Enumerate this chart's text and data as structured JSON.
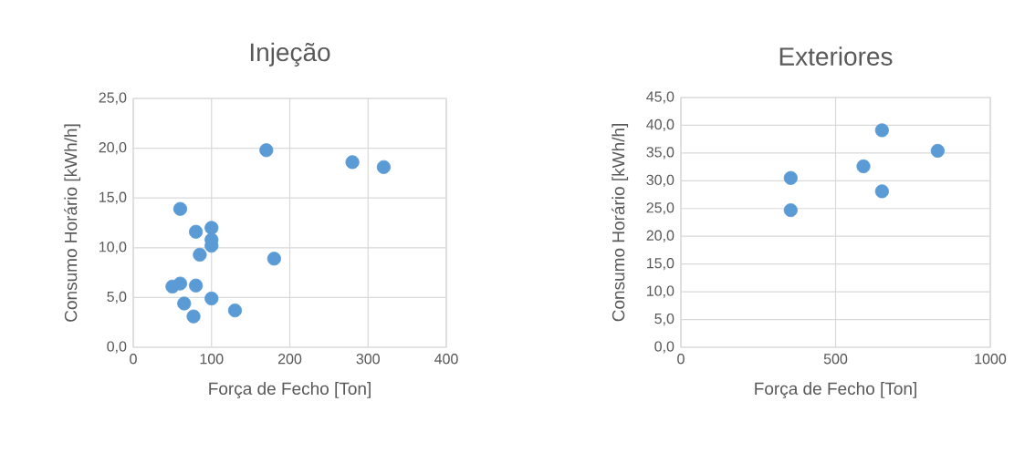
{
  "chart_data": [
    {
      "type": "scatter",
      "title": "Injeção",
      "xlabel": "Força de Fecho [Ton]",
      "ylabel": "Consumo Horário [kWh/h]",
      "color": "#5b9bd5",
      "marker": "circle",
      "grid": true,
      "x": [
        170,
        280,
        320,
        60,
        80,
        100,
        100,
        100,
        85,
        180,
        50,
        60,
        80,
        100,
        65,
        77,
        130
      ],
      "values": [
        19.8,
        18.6,
        18.1,
        13.9,
        11.6,
        12.0,
        10.8,
        10.2,
        9.3,
        8.9,
        6.1,
        6.4,
        6.2,
        4.9,
        4.4,
        3.1,
        3.7
      ],
      "xlim": [
        0,
        400
      ],
      "xticks": [
        0,
        100,
        200,
        300,
        400
      ],
      "ylim": [
        0,
        25
      ],
      "yticks": [
        {
          "value": 0,
          "label": "0,0"
        },
        {
          "value": 5,
          "label": "5,0"
        },
        {
          "value": 10,
          "label": "10,0"
        },
        {
          "value": 15,
          "label": "15,0"
        },
        {
          "value": 20,
          "label": "20,0"
        },
        {
          "value": 25,
          "label": "25,0"
        }
      ]
    },
    {
      "type": "scatter",
      "title": "Exteriores",
      "xlabel": "Força de Fecho [Ton]",
      "ylabel": "Consumo Horário [kWh/h]",
      "color": "#5b9bd5",
      "marker": "circle",
      "grid": true,
      "x": [
        355,
        355,
        590,
        650,
        650,
        830
      ],
      "values": [
        30.5,
        24.7,
        32.6,
        39.1,
        28.1,
        35.4
      ],
      "xlim": [
        0,
        1000
      ],
      "xticks": [
        0,
        500,
        1000
      ],
      "ylim": [
        0,
        45
      ],
      "yticks": [
        {
          "value": 0,
          "label": "0,0"
        },
        {
          "value": 5,
          "label": "5,0"
        },
        {
          "value": 10,
          "label": "10,0"
        },
        {
          "value": 15,
          "label": "15,0"
        },
        {
          "value": 20,
          "label": "20,0"
        },
        {
          "value": 25,
          "label": "25,0"
        },
        {
          "value": 30,
          "label": "30,0"
        },
        {
          "value": 35,
          "label": "35,0"
        },
        {
          "value": 40,
          "label": "40,0"
        },
        {
          "value": 45,
          "label": "45,0"
        }
      ]
    }
  ]
}
